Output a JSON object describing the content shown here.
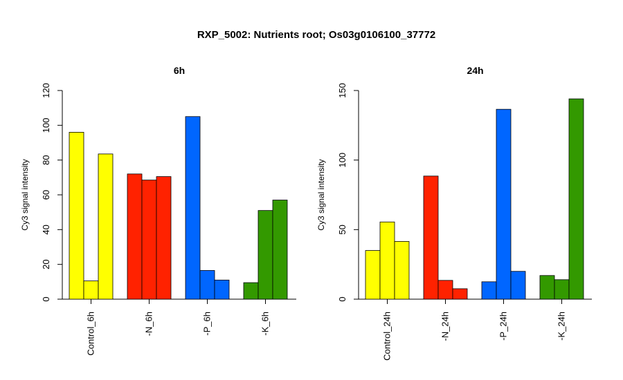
{
  "title": "RXP_5002: Nutrients root; Os03g0106100_37772",
  "palette": [
    "#ffff00",
    "#ff2200",
    "#0066ff",
    "#339900"
  ],
  "chart_data": [
    {
      "type": "bar",
      "title": "6h",
      "ylabel": "Cy3 signal intensity",
      "ylim": [
        0,
        120
      ],
      "yticks": [
        0,
        20,
        40,
        60,
        80,
        100,
        120
      ],
      "grid": false,
      "categories": [
        "Control_6h",
        "-N_6h",
        "-P_6h",
        "-K_6h"
      ],
      "values": [
        [
          96,
          10.5,
          83.5
        ],
        [
          72,
          68.5,
          70.5
        ],
        [
          105,
          16.5,
          11
        ],
        [
          9.5,
          51,
          57
        ]
      ]
    },
    {
      "type": "bar",
      "title": "24h",
      "ylabel": "Cy3 signal intensity",
      "ylim": [
        0,
        150
      ],
      "yticks": [
        0,
        50,
        100,
        150
      ],
      "grid": false,
      "categories": [
        "Control_24h",
        "-N_24h",
        "-P_24h",
        "-K_24h"
      ],
      "values": [
        [
          35,
          55.5,
          41.5
        ],
        [
          88.5,
          13.5,
          7.5
        ],
        [
          12.5,
          136.5,
          20
        ],
        [
          17,
          14,
          144
        ]
      ]
    }
  ]
}
